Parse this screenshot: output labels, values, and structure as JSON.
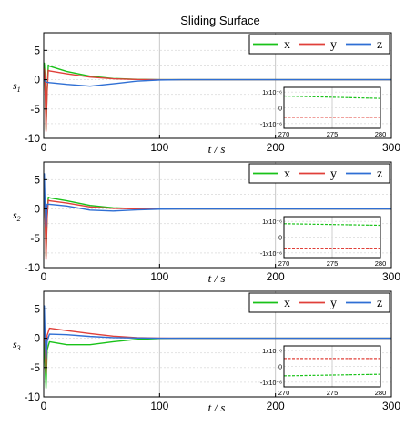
{
  "title": "Sliding Surface",
  "colors": {
    "x": "#19c219",
    "y": "#e0403a",
    "z": "#2f6fd4"
  },
  "chart_data": [
    {
      "type": "line",
      "ylabel_base": "s",
      "ylabel_sub": "1",
      "xlabel": "t / s",
      "xlim": [
        0,
        300
      ],
      "ylim": [
        -10,
        8
      ],
      "xticks": [
        "0",
        "100",
        "200",
        "300"
      ],
      "yticks": [
        "5",
        "0",
        "-5",
        "-10"
      ],
      "legend": [
        "x",
        "y",
        "z"
      ],
      "legend_position": "top-right",
      "grid": true,
      "series": [
        {
          "name": "x",
          "points": [
            [
              0,
              0.5
            ],
            [
              0.5,
              2.8
            ],
            [
              1,
              1.2
            ],
            [
              2,
              -8.5
            ],
            [
              3,
              -1.5
            ],
            [
              4,
              2.5
            ],
            [
              5,
              2.3
            ],
            [
              20,
              1.4
            ],
            [
              40,
              0.6
            ],
            [
              60,
              0.2
            ],
            [
              80,
              0.05
            ],
            [
              100,
              0
            ],
            [
              300,
              0
            ]
          ]
        },
        {
          "name": "y",
          "points": [
            [
              0,
              0.2
            ],
            [
              0.5,
              1.8
            ],
            [
              1,
              0.5
            ],
            [
              2,
              -8.8
            ],
            [
              3,
              -2
            ],
            [
              4,
              1.6
            ],
            [
              5,
              1.5
            ],
            [
              20,
              1
            ],
            [
              40,
              0.45
            ],
            [
              60,
              0.15
            ],
            [
              80,
              0.03
            ],
            [
              100,
              0
            ],
            [
              300,
              0
            ]
          ]
        },
        {
          "name": "z",
          "points": [
            [
              0,
              0
            ],
            [
              2,
              -0.4
            ],
            [
              5,
              -0.5
            ],
            [
              20,
              -0.8
            ],
            [
              40,
              -1.1
            ],
            [
              60,
              -0.7
            ],
            [
              80,
              -0.25
            ],
            [
              100,
              -0.05
            ],
            [
              120,
              0
            ],
            [
              300,
              0
            ]
          ]
        }
      ],
      "inset": {
        "xlim": [
          270,
          280
        ],
        "ylim": [
          -1.3e-06,
          1.3e-06
        ],
        "xticks": [
          "270",
          "275",
          "280"
        ],
        "yticks": [
          "1x10⁻⁶",
          "0",
          "-1x10⁻⁶"
        ],
        "series": [
          {
            "name": "x",
            "values": [
              7.5e-07,
              6e-07
            ]
          },
          {
            "name": "y",
            "values": [
              -6e-07,
              -6e-07
            ]
          }
        ]
      }
    },
    {
      "type": "line",
      "ylabel_base": "s",
      "ylabel_sub": "2",
      "xlabel": "t / s",
      "xlim": [
        0,
        300
      ],
      "ylim": [
        -10,
        8
      ],
      "xticks": [
        "0",
        "100",
        "200",
        "300"
      ],
      "yticks": [
        "5",
        "0",
        "-5",
        "-10"
      ],
      "legend": [
        "x",
        "y",
        "z"
      ],
      "legend_position": "top-right",
      "grid": true,
      "series": [
        {
          "name": "x",
          "points": [
            [
              0,
              0
            ],
            [
              0.5,
              3
            ],
            [
              1,
              1
            ],
            [
              2,
              -8
            ],
            [
              3,
              -1
            ],
            [
              4,
              2
            ],
            [
              5,
              1.9
            ],
            [
              20,
              1.4
            ],
            [
              40,
              0.6
            ],
            [
              60,
              0.2
            ],
            [
              80,
              0.05
            ],
            [
              100,
              0
            ],
            [
              300,
              0
            ]
          ]
        },
        {
          "name": "y",
          "points": [
            [
              0,
              0
            ],
            [
              0.5,
              2.5
            ],
            [
              1,
              0.5
            ],
            [
              2,
              -8.6
            ],
            [
              3,
              -1.5
            ],
            [
              4,
              1.5
            ],
            [
              5,
              1.4
            ],
            [
              20,
              1
            ],
            [
              40,
              0.35
            ],
            [
              60,
              0.1
            ],
            [
              80,
              0.02
            ],
            [
              100,
              0
            ],
            [
              300,
              0
            ]
          ]
        },
        {
          "name": "z",
          "points": [
            [
              0,
              0
            ],
            [
              0.5,
              6
            ],
            [
              1,
              2
            ],
            [
              2,
              -3
            ],
            [
              3,
              0.8
            ],
            [
              5,
              0.8
            ],
            [
              20,
              0.5
            ],
            [
              40,
              -0.2
            ],
            [
              60,
              -0.35
            ],
            [
              80,
              -0.15
            ],
            [
              100,
              -0.03
            ],
            [
              120,
              0
            ],
            [
              300,
              0
            ]
          ]
        }
      ],
      "inset": {
        "xlim": [
          270,
          280
        ],
        "ylim": [
          -1.3e-06,
          1.3e-06
        ],
        "xticks": [
          "270",
          "275",
          "280"
        ],
        "yticks": [
          "1x10⁻⁶",
          "0",
          "-1x10⁻⁶"
        ],
        "series": [
          {
            "name": "x",
            "values": [
              8.5e-07,
              7.5e-07
            ]
          },
          {
            "name": "y",
            "values": [
              -7e-07,
              -7e-07
            ]
          }
        ]
      }
    },
    {
      "type": "line",
      "ylabel_base": "s",
      "ylabel_sub": "3",
      "xlabel": "t / s",
      "xlim": [
        0,
        300
      ],
      "ylim": [
        -10,
        8
      ],
      "xticks": [
        "0",
        "100",
        "200",
        "300"
      ],
      "yticks": [
        "5",
        "0",
        "-5",
        "-10"
      ],
      "legend": [
        "x",
        "y",
        "z"
      ],
      "legend_position": "top-right",
      "grid": true,
      "series": [
        {
          "name": "x",
          "points": [
            [
              0,
              0
            ],
            [
              0.5,
              3
            ],
            [
              1,
              -4
            ],
            [
              2,
              -8.5
            ],
            [
              3,
              -2
            ],
            [
              5,
              -0.6
            ],
            [
              20,
              -1.1
            ],
            [
              40,
              -1.1
            ],
            [
              60,
              -0.6
            ],
            [
              80,
              -0.2
            ],
            [
              100,
              -0.04
            ],
            [
              120,
              0
            ],
            [
              300,
              0
            ]
          ]
        },
        {
          "name": "y",
          "points": [
            [
              0,
              0
            ],
            [
              0.5,
              2.5
            ],
            [
              1,
              0
            ],
            [
              2,
              -6
            ],
            [
              3,
              0.5
            ],
            [
              5,
              1.7
            ],
            [
              20,
              1.3
            ],
            [
              40,
              0.8
            ],
            [
              60,
              0.35
            ],
            [
              80,
              0.1
            ],
            [
              100,
              0.02
            ],
            [
              120,
              0
            ],
            [
              300,
              0
            ]
          ]
        },
        {
          "name": "z",
          "points": [
            [
              0,
              0
            ],
            [
              0.5,
              5.5
            ],
            [
              1,
              1.5
            ],
            [
              2,
              -3.5
            ],
            [
              3,
              -0.5
            ],
            [
              5,
              0.7
            ],
            [
              20,
              0.6
            ],
            [
              40,
              0.3
            ],
            [
              60,
              0.1
            ],
            [
              80,
              0.03
            ],
            [
              100,
              0
            ],
            [
              300,
              0
            ]
          ]
        }
      ],
      "inset": {
        "xlim": [
          270,
          280
        ],
        "ylim": [
          -1.3e-06,
          1.3e-06
        ],
        "xticks": [
          "270",
          "275",
          "280"
        ],
        "yticks": [
          "1x10⁻⁶",
          "0",
          "-1x10⁻⁶"
        ],
        "series": [
          {
            "name": "x",
            "values": [
              -6e-07,
              -5e-07
            ]
          },
          {
            "name": "y",
            "values": [
              5e-07,
              5e-07
            ]
          }
        ]
      }
    }
  ]
}
